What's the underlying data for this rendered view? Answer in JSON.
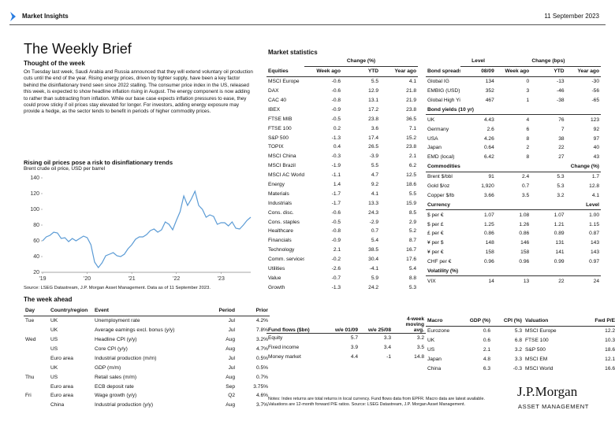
{
  "header": {
    "brand": "Market Insights",
    "date": "11 September 2023"
  },
  "title": "The Weekly Brief",
  "thought": {
    "heading": "Thought of the week",
    "text": "On Tuesday last week, Saudi Arabia and Russia announced that they will extend voluntary oil production cuts until the end of the year. Rising energy prices, driven by tighter supply, have been a key factor behind the disinflationary trend seen since 2022 stalling. The consumer price index in the US, released this week, is expected to show headline inflation rising in August. The energy component is now adding to rather than subtracting from inflation. While our base case expects inflation pressures to ease, they could prove sticky if oil prices stay elevated for longer. For investors, adding energy exposure may provide a hedge, as the sector tends to benefit in periods of higher commodity prices."
  },
  "chart": {
    "type": "line",
    "title": "Rising oil prices pose a risk to disinflationary trends",
    "subtitle": "Brent crude oil price, USD per barrel",
    "categories": [
      "'19",
      null,
      null,
      null,
      null,
      null,
      null,
      null,
      null,
      null,
      null,
      null,
      "'20",
      null,
      null,
      null,
      null,
      null,
      null,
      null,
      null,
      null,
      null,
      null,
      "'21",
      null,
      null,
      null,
      null,
      null,
      null,
      null,
      null,
      null,
      null,
      null,
      "'22",
      null,
      null,
      null,
      null,
      null,
      null,
      null,
      null,
      null,
      null,
      null,
      "'23",
      null,
      null,
      null,
      null,
      null,
      null,
      null,
      null
    ],
    "values": [
      60,
      65,
      67,
      71,
      70,
      63,
      64,
      59,
      63,
      60,
      63,
      66,
      64,
      55,
      33,
      26,
      32,
      41,
      43,
      45,
      41,
      40,
      43,
      50,
      55,
      62,
      65,
      65,
      68,
      73,
      75,
      71,
      74,
      84,
      81,
      74,
      86,
      97,
      117,
      105,
      113,
      123,
      105,
      100,
      90,
      93,
      91,
      81,
      83,
      83,
      79,
      84,
      76,
      75,
      80,
      86,
      90
    ],
    "color": "#5b9bd5",
    "ylim": [
      20,
      140
    ],
    "yticks": [
      20,
      40,
      60,
      80,
      100,
      120,
      140
    ],
    "source": "Source: LSEG Datastream, J.P. Morgan Asset Management. Data as of 11 September 2023."
  },
  "week_ahead": {
    "heading": "The week ahead",
    "columns": [
      "Day",
      "Country/region",
      "Event",
      "Period",
      "Prior"
    ],
    "rows": [
      {
        "day": "Tue",
        "country": "UK",
        "event": "Unemployment rate",
        "period": "Jul",
        "prior": "4.2%"
      },
      {
        "country": "UK",
        "event": "Average earnings excl. bonus (y/y)",
        "period": "Jul",
        "prior": "7.8%"
      },
      {
        "day": "Wed",
        "country": "US",
        "event": "Headline CPI (y/y)",
        "period": "Aug",
        "prior": "3.2%"
      },
      {
        "country": "US",
        "event": "Core CPI (y/y)",
        "period": "Aug",
        "prior": "4.7%"
      },
      {
        "country": "Euro area",
        "event": "Industrial production (m/m)",
        "period": "Jul",
        "prior": "0.5%"
      },
      {
        "country": "UK",
        "event": "GDP (m/m)",
        "period": "Jul",
        "prior": "0.5%"
      },
      {
        "day": "Thu",
        "country": "US",
        "event": "Retail sales (m/m)",
        "period": "Aug",
        "prior": "0.7%"
      },
      {
        "country": "Euro area",
        "event": "ECB deposit rate",
        "period": "Sep",
        "prior": "3.75%"
      },
      {
        "day": "Fri",
        "country": "Euro area",
        "event": "Wage growth (y/y)",
        "period": "Q2",
        "prior": "4.6%"
      },
      {
        "country": "China",
        "event": "Industrial production (y/y)",
        "period": "Aug",
        "prior": "3.7%"
      }
    ]
  },
  "market_stats": {
    "heading": "Market statistics",
    "equities": {
      "group": "Change (%)",
      "columns": [
        "Equities",
        "Week ago",
        "YTD",
        "Year ago"
      ],
      "rows": [
        [
          "MSCI Europe",
          -0.6,
          5.5,
          4.1
        ],
        [
          "DAX",
          -0.6,
          12.9,
          21.8
        ],
        [
          "CAC 40",
          -0.8,
          13.1,
          21.9
        ],
        [
          "IBEX",
          -0.9,
          17.2,
          23.8
        ],
        [
          "FTSE MIB",
          -0.5,
          23.8,
          36.5
        ],
        [
          "FTSE 100",
          0.2,
          3.6,
          7.1
        ],
        [
          "S&P 500",
          -1.3,
          17.4,
          15.2
        ],
        [
          "TOPIX",
          0.4,
          26.5,
          23.8
        ],
        [
          "MSCI China",
          -0.3,
          -3.9,
          2.1
        ],
        [
          "MSCI Brazil",
          -1.9,
          5.5,
          6.2
        ],
        [
          "MSCI AC World",
          -1.1,
          4.7,
          12.5
        ],
        [
          "Energy",
          1.4,
          9.2,
          18.6
        ],
        [
          "Materials",
          -1.7,
          4.1,
          5.5
        ],
        [
          "Industrials",
          -1.7,
          13.3,
          15.9
        ],
        [
          "Cons. disc.",
          -0.6,
          24.3,
          8.5
        ],
        [
          "Cons. staples",
          -0.5,
          -2.9,
          2.9
        ],
        [
          "Healthcare",
          -0.8,
          0.7,
          5.2
        ],
        [
          "Financials",
          -0.9,
          5.4,
          8.7
        ],
        [
          "Technology",
          2.1,
          38.5,
          16.7
        ],
        [
          "Comm. services",
          -0.2,
          30.4,
          17.6
        ],
        [
          "Utilities",
          -2.6,
          -4.1,
          5.4
        ],
        [
          "Value",
          -0.7,
          5.9,
          8.8
        ],
        [
          "Growth",
          -1.3,
          24.2,
          5.3
        ]
      ]
    },
    "bonds": {
      "level": "Level",
      "group": "Change (bps)",
      "columns": [
        "Bond spreads",
        "08/09",
        "Week ago",
        "YTD",
        "Year ago"
      ],
      "rows": [
        [
          "Global IG",
          134,
          0,
          -13,
          -30
        ],
        [
          "EMBIG (USD)",
          352,
          3,
          -46,
          -56
        ],
        [
          "Global High Yield",
          467,
          1,
          -38,
          -65
        ]
      ],
      "yields_heading": "Bond yields (10 yr)",
      "yields": [
        [
          "UK",
          4.43,
          4,
          76,
          123
        ],
        [
          "Germany",
          2.6,
          6,
          7,
          92
        ],
        [
          "USA",
          4.26,
          8,
          38,
          97
        ],
        [
          "Japan",
          0.64,
          2,
          22,
          40
        ],
        [
          "EMD (local)",
          6.42,
          8,
          27,
          43
        ]
      ],
      "commodities_heading": "Commodities",
      "commodities_group": "Change (%)",
      "commodities": [
        [
          "Brent $/bbl",
          91,
          2.4,
          5.3,
          1.7
        ],
        [
          "Gold $/oz",
          "1,920",
          0.7,
          5.3,
          12.8
        ],
        [
          "Copper $/lb",
          3.66,
          3.5,
          3.2,
          4.1
        ]
      ],
      "currency_heading": "Currency",
      "currency_level": "Level",
      "currency": [
        [
          "$ per €",
          1.07,
          1.08,
          1.07,
          "1.00"
        ],
        [
          "$ per £",
          1.25,
          1.26,
          1.21,
          1.15
        ],
        [
          "£ per €",
          0.86,
          0.86,
          0.89,
          0.87
        ],
        [
          "¥ per $",
          148,
          146,
          131,
          143
        ],
        [
          "¥ per €",
          158,
          158,
          141,
          143
        ],
        [
          "CHF per €",
          0.96,
          0.96,
          0.99,
          0.97
        ]
      ],
      "volatility_heading": "Volatility (%)",
      "volatility": [
        [
          "VIX",
          14,
          13,
          22,
          24
        ]
      ]
    },
    "fund_flows": {
      "columns": [
        "Fund flows ($bn)",
        "w/e 01/09",
        "w/e 25/08",
        "4-week moving avg."
      ],
      "rows": [
        [
          "Equity",
          5.7,
          3.3,
          3.2
        ],
        [
          "Fixed income",
          3.9,
          3.4,
          3.5
        ],
        [
          "Money market",
          4.4,
          -1,
          14.8
        ]
      ]
    },
    "macro": {
      "columns": [
        "Macro",
        "GDP (%)",
        "CPI (%)",
        "Valuation",
        "Fwd P/E"
      ],
      "rows": [
        [
          "Eurozone",
          0.6,
          5.3,
          "MSCI Europe",
          12.2
        ],
        [
          "UK",
          0.6,
          6.8,
          "FTSE 100",
          10.3
        ],
        [
          "US",
          2.1,
          3.2,
          "S&P 500",
          18.6
        ],
        [
          "Japan",
          4.8,
          3.3,
          "MSCI EM",
          12.1
        ],
        [
          "China",
          6.3,
          -0.3,
          "MSCI World",
          16.6
        ]
      ]
    }
  },
  "notes": "Notes: Index returns are total returns in local currency. Fund flows data from EPFR. Macro data are latest available. Valuations are 12-month forward P/E ratios. Source: LSEG Datastream, J.P. Morgan Asset Management.",
  "logo": {
    "name": "J.P.Morgan",
    "sub": "ASSET MANAGEMENT"
  }
}
